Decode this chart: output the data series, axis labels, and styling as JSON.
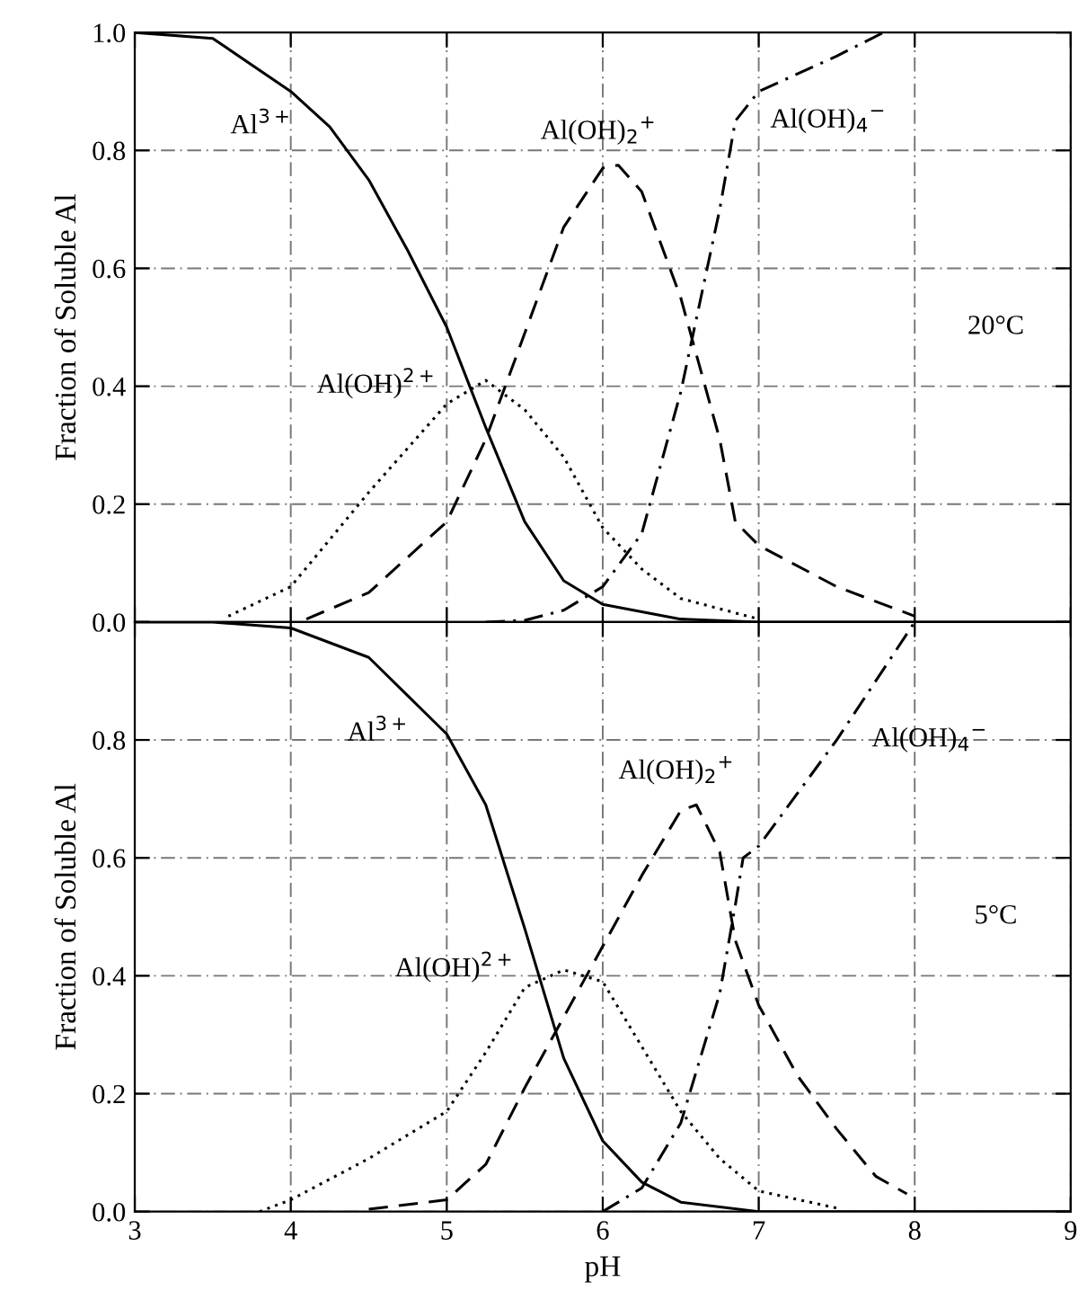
{
  "chart_data": [
    {
      "type": "line",
      "ylabel": "Fraction of Soluble Al",
      "xlim": [
        3,
        9
      ],
      "xticks": [
        3,
        4,
        5,
        6,
        7,
        8,
        9
      ],
      "ylim": [
        0,
        1.0
      ],
      "yticks": [
        {
          "value": 0.0,
          "label": "0.0"
        },
        {
          "value": 0.2,
          "label": "0.2"
        },
        {
          "value": 0.4,
          "label": "0.4"
        },
        {
          "value": 0.6,
          "label": "0.6"
        },
        {
          "value": 0.8,
          "label": "0.8"
        },
        {
          "value": 1.0,
          "label": "1.0"
        }
      ],
      "tick_labels": "y",
      "grid": true,
      "legend": false,
      "series": [
        {
          "name": "Al$^{3+}$",
          "color": "#000000",
          "line_style": "solid",
          "x": [
            3,
            3.5,
            4,
            4.25,
            4.5,
            4.75,
            5,
            5.25,
            5.5,
            5.75,
            6,
            6.5,
            7,
            9
          ],
          "values": [
            1.0,
            0.99,
            0.9,
            0.84,
            0.75,
            0.63,
            0.5,
            0.33,
            0.17,
            0.07,
            0.03,
            0.005,
            0,
            0
          ]
        },
        {
          "name": "Al(OH)$^{2+}$",
          "color": "#000000",
          "line_style": "dotted",
          "x": [
            3.6,
            4,
            4.5,
            5,
            5.25,
            5.5,
            5.75,
            6,
            6.25,
            6.5,
            7
          ],
          "values": [
            0.01,
            0.06,
            0.22,
            0.37,
            0.41,
            0.36,
            0.28,
            0.16,
            0.09,
            0.04,
            0.005
          ]
        },
        {
          "name": "Al(OH)$_{2}$$^{+}$",
          "color": "#000000",
          "line_style": "dashed",
          "x": [
            4.1,
            4.5,
            5,
            5.25,
            5.5,
            5.75,
            6,
            6.1,
            6.25,
            6.5,
            6.75,
            6.85,
            7,
            7.5,
            8
          ],
          "values": [
            0.005,
            0.05,
            0.17,
            0.31,
            0.49,
            0.67,
            0.77,
            0.775,
            0.73,
            0.55,
            0.31,
            0.17,
            0.13,
            0.06,
            0.01
          ]
        },
        {
          "name": "Al(OH)$_{4}$$^{−}$",
          "color": "#000000",
          "line_style": "dashdot",
          "x": [
            5.25,
            5.5,
            5.75,
            6,
            6.25,
            6.5,
            6.75,
            6.85,
            7,
            7.5,
            7.8
          ],
          "values": [
            0,
            0.003,
            0.02,
            0.06,
            0.15,
            0.39,
            0.7,
            0.85,
            0.9,
            0.96,
            1.0
          ]
        }
      ],
      "annotations": [
        "20°C"
      ]
    },
    {
      "type": "line",
      "xlabel": "pH",
      "ylabel": "Fraction of Soluble Al",
      "xlim": [
        3,
        9
      ],
      "xticks": [
        3,
        4,
        5,
        6,
        7,
        8,
        9
      ],
      "ylim": [
        0,
        1.0
      ],
      "yticks": [
        {
          "value": 0.0,
          "label": "0.0"
        },
        {
          "value": 0.2,
          "label": "0.2"
        },
        {
          "value": 0.4,
          "label": "0.4"
        },
        {
          "value": 0.6,
          "label": "0.6"
        },
        {
          "value": 0.8,
          "label": "0.8"
        },
        {
          "value": 1.0,
          "label": null
        }
      ],
      "grid": true,
      "legend": false,
      "series": [
        {
          "name": "Al$^{3+}$",
          "color": "#000000",
          "line_style": "solid",
          "x": [
            3,
            3.5,
            4,
            4.5,
            5,
            5.25,
            5.5,
            5.75,
            6,
            6.25,
            6.5,
            7,
            9
          ],
          "values": [
            1.0,
            1.0,
            0.99,
            0.94,
            0.81,
            0.69,
            0.48,
            0.26,
            0.12,
            0.05,
            0.016,
            0,
            0
          ]
        },
        {
          "name": "Al(OH)$^{2+}$",
          "color": "#000000",
          "line_style": "dotted",
          "x": [
            3.8,
            4,
            4.5,
            5,
            5.25,
            5.5,
            5.75,
            6,
            6.25,
            6.5,
            6.75,
            7,
            7.5
          ],
          "values": [
            0,
            0.02,
            0.09,
            0.17,
            0.27,
            0.38,
            0.41,
            0.39,
            0.28,
            0.17,
            0.09,
            0.035,
            0.006
          ]
        },
        {
          "name": "Al(OH)$_{2}$$^{+}$",
          "color": "#000000",
          "line_style": "dashed",
          "x": [
            4.5,
            5,
            5.25,
            5.5,
            5.75,
            6,
            6.25,
            6.5,
            6.6,
            6.75,
            6.85,
            7,
            7.25,
            7.5,
            7.75,
            7.95
          ],
          "values": [
            0.004,
            0.02,
            0.08,
            0.21,
            0.33,
            0.45,
            0.57,
            0.68,
            0.69,
            0.61,
            0.46,
            0.35,
            0.23,
            0.14,
            0.06,
            0.03
          ]
        },
        {
          "name": "Al(OH)$_{4}$$^{−}$",
          "color": "#000000",
          "line_style": "dashdot",
          "x": [
            6,
            6.25,
            6.5,
            6.75,
            6.85,
            6.9,
            7,
            7.5,
            8
          ],
          "values": [
            0,
            0.04,
            0.15,
            0.37,
            0.52,
            0.6,
            0.62,
            0.8,
            1.0
          ]
        }
      ],
      "annotations": [
        "5°C"
      ]
    }
  ]
}
